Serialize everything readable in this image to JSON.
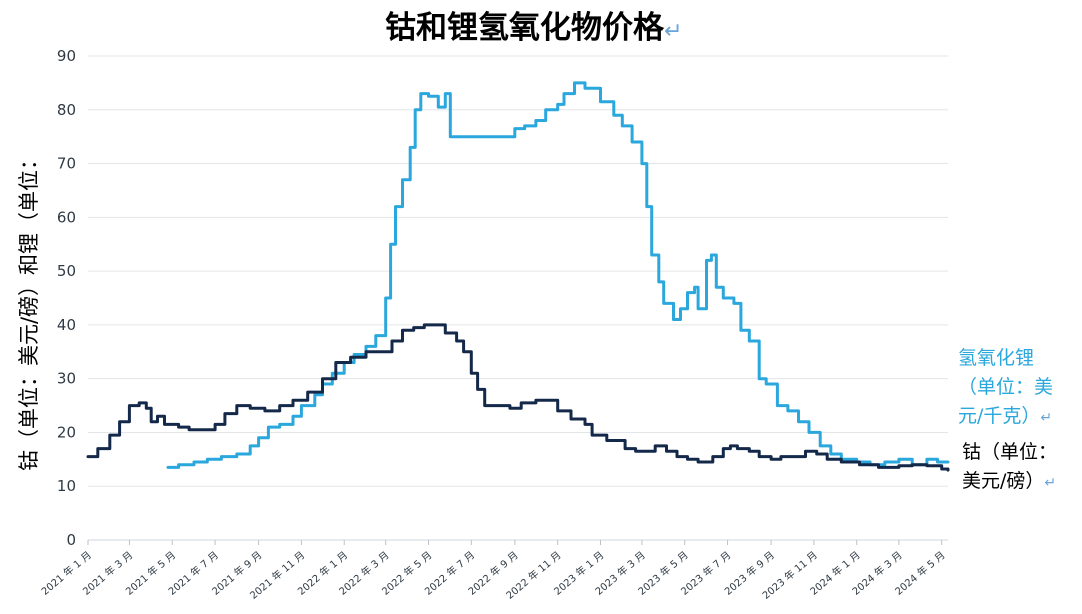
{
  "chart_data": {
    "type": "line",
    "title": "钴和锂氢氧化物价格",
    "ylabel": "钴（单位：美元/磅）和锂（单位：",
    "ylim": [
      0,
      90
    ],
    "y_ticks": [
      "0",
      "10",
      "20",
      "30",
      "40",
      "50",
      "60",
      "70",
      "80",
      "90"
    ],
    "x_ticks": [
      "2021 年 1 月",
      "2021 年 3 月",
      "2021 年 5 月",
      "2021 年 7 月",
      "2021 年 9 月",
      "2021 年 11 月",
      "2022 年 1 月",
      "2022 年 3 月",
      "2022 年 5 月",
      "2022 年 7 月",
      "2022 年 9 月",
      "2022 年 11 月",
      "2023 年 1 月",
      "2023 年 3 月",
      "2023 年 5 月",
      "2023 年 7 月",
      "2023 年 9 月",
      "2023 年 11 月",
      "2024 年 1 月",
      "2024 年 3 月",
      "2024 年 5 月"
    ],
    "x_range": [
      "2021-01-01",
      "2024-05-10"
    ],
    "grid": true,
    "series": [
      {
        "name": "氢氧化锂（单位：美元/千克）",
        "color": "#2aa7dc",
        "points": [
          [
            "2021-04-25",
            13.5
          ],
          [
            "2021-05-10",
            14.0
          ],
          [
            "2021-06-01",
            14.5
          ],
          [
            "2021-06-20",
            15.0
          ],
          [
            "2021-07-10",
            15.5
          ],
          [
            "2021-08-01",
            16.0
          ],
          [
            "2021-08-20",
            17.5
          ],
          [
            "2021-09-01",
            19.0
          ],
          [
            "2021-09-15",
            21.0
          ],
          [
            "2021-10-01",
            21.5
          ],
          [
            "2021-10-20",
            23.0
          ],
          [
            "2021-11-01",
            25.0
          ],
          [
            "2021-11-20",
            27.0
          ],
          [
            "2021-12-01",
            29.0
          ],
          [
            "2021-12-15",
            31.0
          ],
          [
            "2022-01-01",
            33.0
          ],
          [
            "2022-01-15",
            34.5
          ],
          [
            "2022-02-01",
            36.0
          ],
          [
            "2022-02-15",
            38.0
          ],
          [
            "2022-03-01",
            45.0
          ],
          [
            "2022-03-08",
            55.0
          ],
          [
            "2022-03-15",
            62.0
          ],
          [
            "2022-03-25",
            67.0
          ],
          [
            "2022-04-05",
            73.0
          ],
          [
            "2022-04-12",
            80.0
          ],
          [
            "2022-04-20",
            83.0
          ],
          [
            "2022-05-01",
            82.5
          ],
          [
            "2022-05-15",
            80.5
          ],
          [
            "2022-05-25",
            83.0
          ],
          [
            "2022-06-01",
            75.0
          ],
          [
            "2022-06-20",
            75.0
          ],
          [
            "2022-07-10",
            75.0
          ],
          [
            "2022-08-01",
            75.0
          ],
          [
            "2022-08-20",
            75.0
          ],
          [
            "2022-09-01",
            76.5
          ],
          [
            "2022-09-15",
            77.0
          ],
          [
            "2022-10-01",
            78.0
          ],
          [
            "2022-10-15",
            80.0
          ],
          [
            "2022-11-01",
            81.0
          ],
          [
            "2022-11-10",
            83.0
          ],
          [
            "2022-11-25",
            85.0
          ],
          [
            "2022-12-10",
            84.0
          ],
          [
            "2023-01-01",
            81.5
          ],
          [
            "2023-01-20",
            79.0
          ],
          [
            "2023-02-01",
            77.0
          ],
          [
            "2023-02-15",
            74.0
          ],
          [
            "2023-03-01",
            70.0
          ],
          [
            "2023-03-08",
            62.0
          ],
          [
            "2023-03-15",
            53.0
          ],
          [
            "2023-03-25",
            48.0
          ],
          [
            "2023-04-01",
            44.0
          ],
          [
            "2023-04-15",
            41.0
          ],
          [
            "2023-04-25",
            43.0
          ],
          [
            "2023-05-05",
            46.0
          ],
          [
            "2023-05-15",
            47.0
          ],
          [
            "2023-05-20",
            43.0
          ],
          [
            "2023-06-01",
            52.0
          ],
          [
            "2023-06-08",
            53.0
          ],
          [
            "2023-06-15",
            47.0
          ],
          [
            "2023-06-25",
            45.0
          ],
          [
            "2023-07-10",
            44.0
          ],
          [
            "2023-07-20",
            39.0
          ],
          [
            "2023-08-01",
            37.0
          ],
          [
            "2023-08-15",
            30.0
          ],
          [
            "2023-08-25",
            29.0
          ],
          [
            "2023-09-10",
            25.0
          ],
          [
            "2023-09-25",
            24.0
          ],
          [
            "2023-10-10",
            22.0
          ],
          [
            "2023-10-25",
            20.0
          ],
          [
            "2023-11-10",
            17.5
          ],
          [
            "2023-11-25",
            16.0
          ],
          [
            "2023-12-10",
            15.0
          ],
          [
            "2024-01-01",
            14.5
          ],
          [
            "2024-01-20",
            14.0
          ],
          [
            "2024-02-10",
            14.5
          ],
          [
            "2024-03-01",
            15.0
          ],
          [
            "2024-03-20",
            14.0
          ],
          [
            "2024-04-10",
            15.0
          ],
          [
            "2024-04-25",
            14.5
          ],
          [
            "2024-05-10",
            14.5
          ]
        ]
      },
      {
        "name": "钴（单位：美元/磅）",
        "color": "#14284a",
        "points": [
          [
            "2021-01-01",
            15.5
          ],
          [
            "2021-01-15",
            17.0
          ],
          [
            "2021-02-01",
            19.5
          ],
          [
            "2021-02-15",
            22.0
          ],
          [
            "2021-03-01",
            25.0
          ],
          [
            "2021-03-15",
            25.5
          ],
          [
            "2021-03-25",
            24.5
          ],
          [
            "2021-04-01",
            22.0
          ],
          [
            "2021-04-10",
            23.0
          ],
          [
            "2021-04-20",
            21.5
          ],
          [
            "2021-05-10",
            21.0
          ],
          [
            "2021-05-25",
            20.5
          ],
          [
            "2021-06-15",
            20.5
          ],
          [
            "2021-07-01",
            21.5
          ],
          [
            "2021-07-15",
            23.5
          ],
          [
            "2021-08-01",
            25.0
          ],
          [
            "2021-08-20",
            24.5
          ],
          [
            "2021-09-10",
            24.0
          ],
          [
            "2021-10-01",
            25.0
          ],
          [
            "2021-10-20",
            26.0
          ],
          [
            "2021-11-10",
            27.5
          ],
          [
            "2021-12-01",
            30.0
          ],
          [
            "2021-12-20",
            33.0
          ],
          [
            "2022-01-10",
            34.0
          ],
          [
            "2022-02-01",
            35.0
          ],
          [
            "2022-02-20",
            35.0
          ],
          [
            "2022-03-10",
            37.0
          ],
          [
            "2022-03-25",
            39.0
          ],
          [
            "2022-04-10",
            39.5
          ],
          [
            "2022-04-25",
            40.0
          ],
          [
            "2022-05-10",
            40.0
          ],
          [
            "2022-05-25",
            38.5
          ],
          [
            "2022-06-10",
            37.0
          ],
          [
            "2022-06-20",
            35.0
          ],
          [
            "2022-07-01",
            31.0
          ],
          [
            "2022-07-10",
            28.0
          ],
          [
            "2022-07-20",
            25.0
          ],
          [
            "2022-08-10",
            25.0
          ],
          [
            "2022-08-25",
            24.5
          ],
          [
            "2022-09-10",
            25.5
          ],
          [
            "2022-10-01",
            26.0
          ],
          [
            "2022-10-20",
            26.0
          ],
          [
            "2022-11-01",
            24.0
          ],
          [
            "2022-11-20",
            22.5
          ],
          [
            "2022-12-10",
            21.5
          ],
          [
            "2022-12-20",
            19.5
          ],
          [
            "2023-01-10",
            18.5
          ],
          [
            "2023-01-25",
            18.5
          ],
          [
            "2023-02-05",
            17.0
          ],
          [
            "2023-02-20",
            16.5
          ],
          [
            "2023-03-10",
            16.5
          ],
          [
            "2023-03-20",
            17.5
          ],
          [
            "2023-04-05",
            16.5
          ],
          [
            "2023-04-20",
            15.5
          ],
          [
            "2023-05-05",
            15.0
          ],
          [
            "2023-05-20",
            14.5
          ],
          [
            "2023-06-10",
            15.5
          ],
          [
            "2023-06-25",
            17.0
          ],
          [
            "2023-07-05",
            17.5
          ],
          [
            "2023-07-15",
            17.0
          ],
          [
            "2023-08-01",
            16.5
          ],
          [
            "2023-08-15",
            15.5
          ],
          [
            "2023-09-01",
            15.0
          ],
          [
            "2023-09-15",
            15.5
          ],
          [
            "2023-10-01",
            15.5
          ],
          [
            "2023-10-20",
            16.5
          ],
          [
            "2023-11-05",
            16.0
          ],
          [
            "2023-11-20",
            15.0
          ],
          [
            "2023-12-10",
            14.5
          ],
          [
            "2024-01-05",
            14.0
          ],
          [
            "2024-02-01",
            13.5
          ],
          [
            "2024-03-01",
            13.8
          ],
          [
            "2024-03-20",
            14.0
          ],
          [
            "2024-04-10",
            13.8
          ],
          [
            "2024-05-01",
            13.2
          ],
          [
            "2024-05-10",
            13.0
          ]
        ]
      }
    ],
    "legend": {
      "lithium_lines": [
        "氢氧化锂",
        "（单位：美",
        "元/千克）"
      ],
      "cobalt_lines": [
        "钴（单位：",
        "美元/磅）"
      ],
      "return_mark": "↵"
    }
  }
}
